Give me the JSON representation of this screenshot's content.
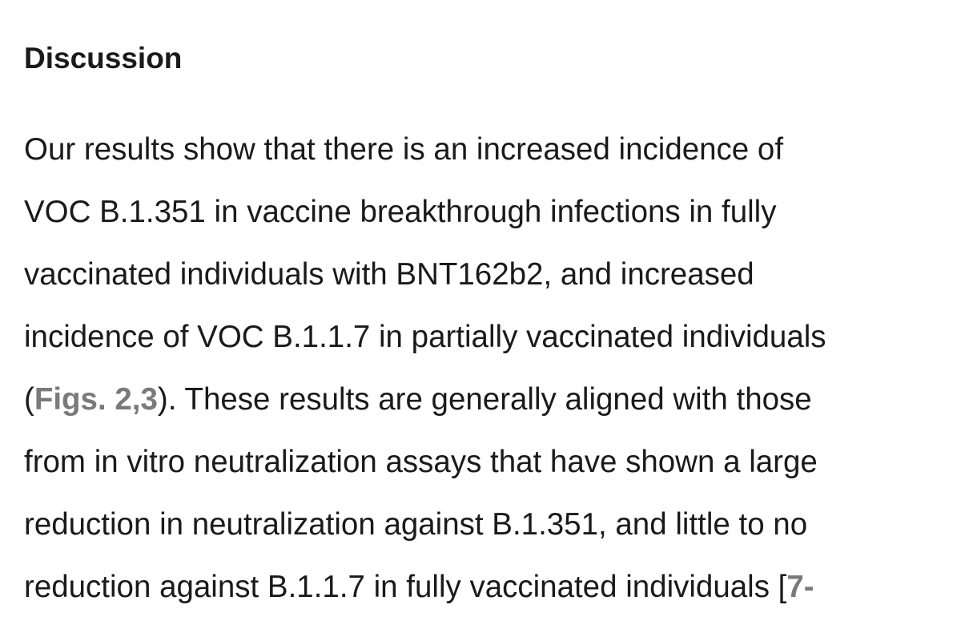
{
  "section": {
    "heading": "Discussion"
  },
  "paragraph": {
    "line1": "Our results show that there is an increased incidence of",
    "line2": "VOC B.1.351 in vaccine breakthrough infections in fully",
    "line3": "vaccinated individuals with BNT162b2, and increased",
    "line4": "incidence of VOC B.1.1.7 in partially vaccinated individuals",
    "line5_open": "(",
    "figs_link": "Figs. 2",
    "comma": ",",
    "fig3_link": "3",
    "line5_rest": "). These results are generally aligned with those",
    "line6": "from in vitro neutralization assays that have shown a large",
    "line7": "reduction in neutralization against B.1.351, and little to no",
    "line8_text": "reduction against B.1.1.7 in fully vaccinated individuals [",
    "ref7_link": "7",
    "line8_tail": "-"
  },
  "colors": {
    "text": "#1a1a1a",
    "link": "#7a7a7a",
    "background": "#ffffff"
  }
}
